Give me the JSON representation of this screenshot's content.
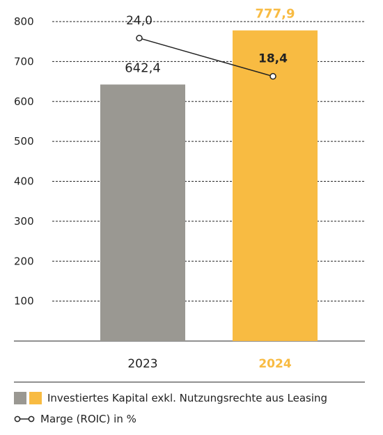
{
  "chart_data": {
    "type": "bar",
    "categories": [
      "2023",
      "2024"
    ],
    "ylim": [
      0,
      800
    ],
    "yticks": [
      100,
      200,
      300,
      400,
      500,
      600,
      700,
      800
    ],
    "grid": true,
    "series": [
      {
        "name": "Investiertes Kapital exkl. Nutzungsrechte aus Leasing",
        "type": "bar",
        "values": [
          642.4,
          777.9
        ],
        "value_labels": [
          "642,4",
          "777,9"
        ],
        "colors": [
          "#9a9892",
          "#f8bb42"
        ]
      },
      {
        "name": "Marge (ROIC) in %",
        "type": "line",
        "values": [
          24.0,
          18.4
        ],
        "value_labels": [
          "24,0",
          "18,4"
        ]
      }
    ],
    "legend_position": "bottom-left"
  },
  "colors": {
    "bar_2023": "#9a9892",
    "bar_2024": "#f8bb42",
    "highlight_text": "#f8bb42",
    "text": "#222222",
    "grid": "#222222"
  },
  "legend": {
    "bar_label": "Investiertes Kapital exkl. Nutzungsrechte aus Leasing",
    "line_label": "Marge (ROIC) in %"
  }
}
